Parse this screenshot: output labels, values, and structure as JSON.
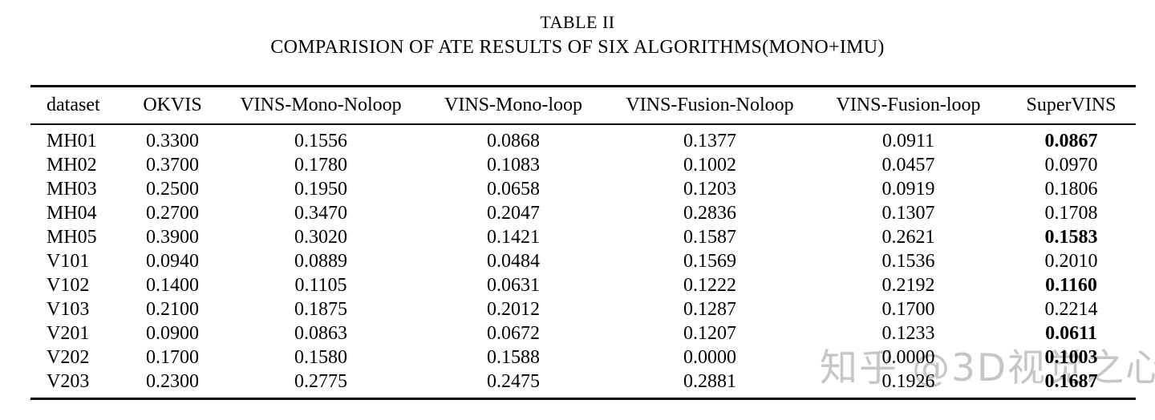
{
  "caption": {
    "label": "TABLE II",
    "title": "COMPARISION OF ATE RESULTS OF SIX ALGORITHMS(MONO+IMU)"
  },
  "watermark": {
    "text": "知乎 @3D视觉之心"
  },
  "table": {
    "columns": [
      "dataset",
      "OKVIS",
      "VINS-Mono-Noloop",
      "VINS-Mono-loop",
      "VINS-Fusion-Noloop",
      "VINS-Fusion-loop",
      "SuperVINS"
    ],
    "rows": [
      {
        "cells": [
          "MH01",
          "0.3300",
          "0.1556",
          "0.0868",
          "0.1377",
          "0.0911",
          "0.0867"
        ],
        "bold": [
          false,
          false,
          false,
          false,
          false,
          false,
          true
        ]
      },
      {
        "cells": [
          "MH02",
          "0.3700",
          "0.1780",
          "0.1083",
          "0.1002",
          "0.0457",
          "0.0970"
        ],
        "bold": [
          false,
          false,
          false,
          false,
          false,
          false,
          false
        ]
      },
      {
        "cells": [
          "MH03",
          "0.2500",
          "0.1950",
          "0.0658",
          "0.1203",
          "0.0919",
          "0.1806"
        ],
        "bold": [
          false,
          false,
          false,
          false,
          false,
          false,
          false
        ]
      },
      {
        "cells": [
          "MH04",
          "0.2700",
          "0.3470",
          "0.2047",
          "0.2836",
          "0.1307",
          "0.1708"
        ],
        "bold": [
          false,
          false,
          false,
          false,
          false,
          false,
          false
        ]
      },
      {
        "cells": [
          "MH05",
          "0.3900",
          "0.3020",
          "0.1421",
          "0.1587",
          "0.2621",
          "0.1583"
        ],
        "bold": [
          false,
          false,
          false,
          false,
          false,
          false,
          true
        ]
      },
      {
        "cells": [
          "V101",
          "0.0940",
          "0.0889",
          "0.0484",
          "0.1569",
          "0.1536",
          "0.2010"
        ],
        "bold": [
          false,
          false,
          false,
          false,
          false,
          false,
          false
        ]
      },
      {
        "cells": [
          "V102",
          "0.1400",
          "0.1105",
          "0.0631",
          "0.1222",
          "0.2192",
          "0.1160"
        ],
        "bold": [
          false,
          false,
          false,
          false,
          false,
          false,
          true
        ]
      },
      {
        "cells": [
          "V103",
          "0.2100",
          "0.1875",
          "0.2012",
          "0.1287",
          "0.1700",
          "0.2214"
        ],
        "bold": [
          false,
          false,
          false,
          false,
          false,
          false,
          false
        ]
      },
      {
        "cells": [
          "V201",
          "0.0900",
          "0.0863",
          "0.0672",
          "0.1207",
          "0.1233",
          "0.0611"
        ],
        "bold": [
          false,
          false,
          false,
          false,
          false,
          false,
          true
        ]
      },
      {
        "cells": [
          "V202",
          "0.1700",
          "0.1580",
          "0.1588",
          "0.0000",
          "0.0000",
          "0.1003"
        ],
        "bold": [
          false,
          false,
          false,
          false,
          false,
          false,
          true
        ]
      },
      {
        "cells": [
          "V203",
          "0.2300",
          "0.2775",
          "0.2475",
          "0.2881",
          "0.1926",
          "0.1687"
        ],
        "bold": [
          false,
          false,
          false,
          false,
          false,
          false,
          true
        ]
      }
    ]
  },
  "chart_data": {
    "type": "table",
    "title": "COMPARISION OF ATE RESULTS OF SIX ALGORITHMS(MONO+IMU)",
    "columns": [
      "dataset",
      "OKVIS",
      "VINS-Mono-Noloop",
      "VINS-Mono-loop",
      "VINS-Fusion-Noloop",
      "VINS-Fusion-loop",
      "SuperVINS"
    ],
    "rows": [
      [
        "MH01",
        0.33,
        0.1556,
        0.0868,
        0.1377,
        0.0911,
        0.0867
      ],
      [
        "MH02",
        0.37,
        0.178,
        0.1083,
        0.1002,
        0.0457,
        0.097
      ],
      [
        "MH03",
        0.25,
        0.195,
        0.0658,
        0.1203,
        0.0919,
        0.1806
      ],
      [
        "MH04",
        0.27,
        0.347,
        0.2047,
        0.2836,
        0.1307,
        0.1708
      ],
      [
        "MH05",
        0.39,
        0.302,
        0.1421,
        0.1587,
        0.2621,
        0.1583
      ],
      [
        "V101",
        0.094,
        0.0889,
        0.0484,
        0.1569,
        0.1536,
        0.201
      ],
      [
        "V102",
        0.14,
        0.1105,
        0.0631,
        0.1222,
        0.2192,
        0.116
      ],
      [
        "V103",
        0.21,
        0.1875,
        0.2012,
        0.1287,
        0.17,
        0.2214
      ],
      [
        "V201",
        0.09,
        0.0863,
        0.0672,
        0.1207,
        0.1233,
        0.0611
      ],
      [
        "V202",
        0.17,
        0.158,
        0.1588,
        0.0,
        0.0,
        0.1003
      ],
      [
        "V203",
        0.23,
        0.2775,
        0.2475,
        0.2881,
        0.1926,
        0.1687
      ]
    ],
    "bold_cells_note": "SuperVINS column bold for rows MH01, MH05, V102, V201, V202, V203"
  }
}
